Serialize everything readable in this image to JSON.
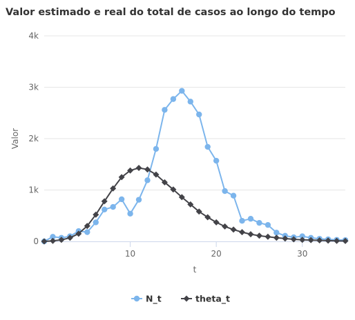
{
  "chart_data": {
    "type": "line",
    "title": "Valor estimado e real do total de casos ao longo do tempo",
    "xlabel": "t",
    "ylabel": "Valor",
    "xlim": [
      0,
      35
    ],
    "ylim": [
      0,
      4000
    ],
    "x_ticks": [
      10,
      20,
      30
    ],
    "x_tick_labels": [
      "10",
      "20",
      "30"
    ],
    "y_ticks": [
      0,
      1000,
      2000,
      3000,
      4000
    ],
    "y_tick_labels": [
      "0",
      "1k",
      "2k",
      "3k",
      "4k"
    ],
    "grid": true,
    "legend_position": "bottom",
    "x": [
      0,
      1,
      2,
      3,
      4,
      5,
      6,
      7,
      8,
      9,
      10,
      11,
      12,
      13,
      14,
      15,
      16,
      17,
      18,
      19,
      20,
      21,
      22,
      23,
      24,
      25,
      26,
      27,
      28,
      29,
      30,
      31,
      32,
      33,
      34,
      35
    ],
    "series": [
      {
        "name": "N_t",
        "color": "#7cb5ec",
        "marker": "circle",
        "values": [
          0,
          90,
          70,
          100,
          200,
          180,
          370,
          620,
          670,
          820,
          540,
          810,
          1190,
          1800,
          2560,
          2770,
          2930,
          2720,
          2470,
          1840,
          1570,
          980,
          890,
          400,
          440,
          360,
          320,
          170,
          110,
          80,
          100,
          70,
          50,
          40,
          30,
          25
        ]
      },
      {
        "name": "theta_t",
        "color": "#434348",
        "marker": "diamond",
        "values": [
          0,
          10,
          30,
          70,
          150,
          300,
          520,
          780,
          1030,
          1250,
          1380,
          1430,
          1400,
          1300,
          1150,
          1010,
          860,
          720,
          580,
          470,
          370,
          290,
          230,
          180,
          140,
          110,
          90,
          70,
          55,
          40,
          30,
          25,
          20,
          15,
          10,
          8
        ]
      }
    ]
  }
}
